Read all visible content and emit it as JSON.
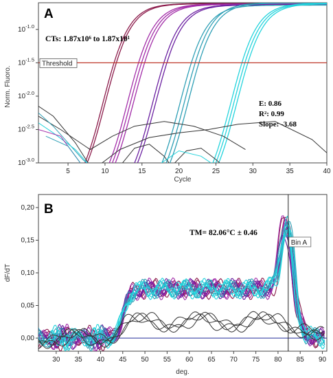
{
  "colors": {
    "maroon": "#8B1A4A",
    "magenta": "#A22CA8",
    "purple": "#6A1FA0",
    "teal": "#2E9FB5",
    "cyan": "#22D3DC",
    "black": "#333333",
    "threshold": "#C0392B",
    "baseline": "#1F2A9A"
  },
  "chart_data": [
    {
      "type": "line",
      "panel_label": "A",
      "xlabel": "Cycle",
      "ylabel": "Norm. Fluoro.",
      "y_scale": "log",
      "xlim": [
        1,
        40
      ],
      "ylim_exponent": [
        -3.0,
        -0.6
      ],
      "x_ticks": [
        "5",
        "10",
        "15",
        "20",
        "25",
        "30",
        "35",
        "40"
      ],
      "y_tick_labels": [
        "10^-1.0",
        "10^-1.5",
        "10^-2.0",
        "10^-2.5",
        "10^-3.0"
      ],
      "threshold": {
        "label": "Threshold",
        "value_exponent": -1.5
      },
      "annotation_cts": "CTs: 1.87x10⁶ to 1.87x10¹",
      "stats": {
        "efficiency": "E: 0.86",
        "r2": "R²: 0.99",
        "slope": "Slope: -3.68"
      },
      "series": [
        {
          "group": "maroon",
          "ct": [
            11.2,
            11.5
          ]
        },
        {
          "group": "magenta",
          "ct": [
            14.5,
            14.9,
            15.3
          ]
        },
        {
          "group": "purple",
          "ct": [
            17.9,
            18.3
          ]
        },
        {
          "group": "teal",
          "ct": [
            21.6,
            22.2,
            22.7
          ]
        },
        {
          "group": "cyan",
          "ct": [
            28.5,
            28.9,
            29.3
          ]
        }
      ]
    },
    {
      "type": "line",
      "panel_label": "B",
      "xlabel": "deg.",
      "ylabel": "dF/dT",
      "xlim": [
        26,
        91
      ],
      "ylim": [
        -0.02,
        0.22
      ],
      "x_ticks": [
        "30",
        "35",
        "40",
        "45",
        "50",
        "55",
        "60",
        "65",
        "70",
        "75",
        "80",
        "85",
        "90"
      ],
      "y_tick_labels": [
        "0,00",
        "0,05",
        "0,10",
        "0,15",
        "0,20"
      ],
      "y_tick_values": [
        0.0,
        0.05,
        0.1,
        0.15,
        0.2
      ],
      "melting_temp_label": "TM= 82.06°C ± 0.46",
      "bin_label": "Bin A",
      "bin_x": 82.3,
      "peak_tm": 82.06,
      "peak_height_range": [
        0.17,
        0.2
      ],
      "plateau_level_range": [
        0.07,
        0.09
      ]
    }
  ]
}
